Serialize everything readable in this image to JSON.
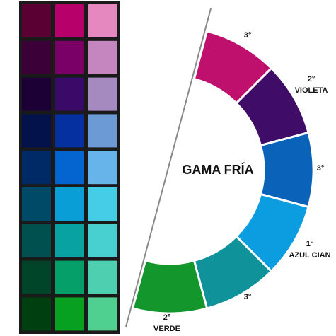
{
  "title": "GAMA FRÍA",
  "segments": [
    {
      "degree": "3°"
    },
    {
      "degree": "2°",
      "name": "VIOLETA"
    },
    {
      "degree": "3°"
    },
    {
      "degree": "1°",
      "name": "AZUL CIAN"
    },
    {
      "degree": "3°"
    },
    {
      "degree": "2°",
      "name": "VERDE"
    }
  ]
}
